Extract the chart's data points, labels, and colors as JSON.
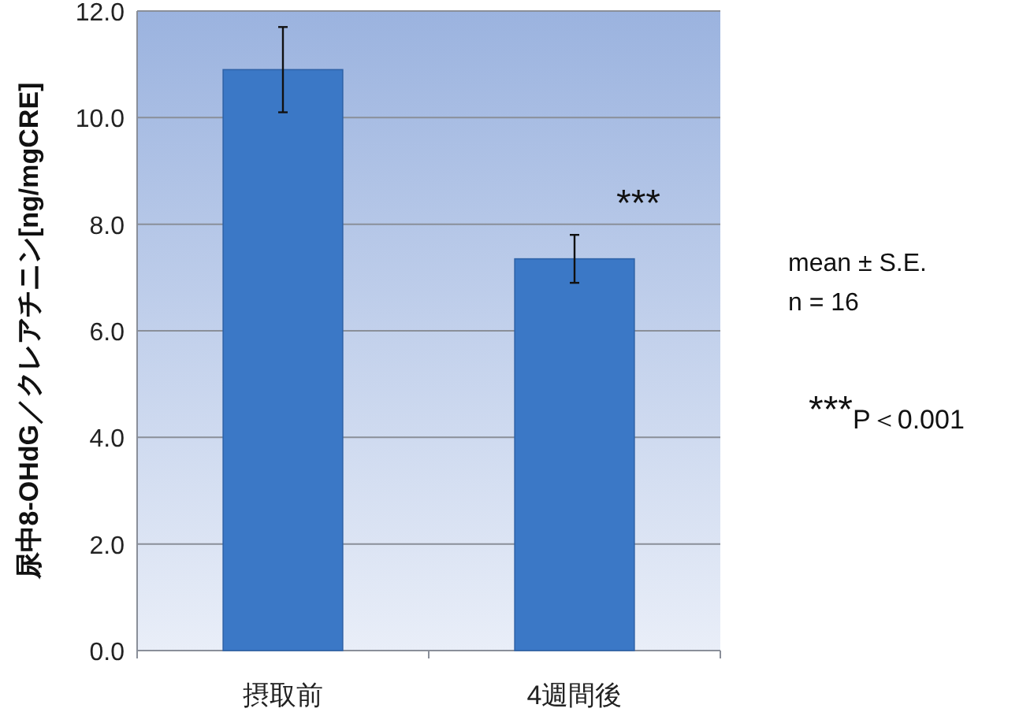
{
  "chart_data": {
    "type": "bar",
    "ylabel": "尿中8-OHdG／クレアチニン[ng/mgCRE]",
    "categories": [
      "摂取前",
      "4週間後"
    ],
    "values": [
      10.9,
      7.35
    ],
    "errors": [
      0.8,
      0.45
    ],
    "color": "#3b78c6",
    "ylim": [
      0,
      12
    ],
    "yticks": [
      {
        "value": 0,
        "label": "0.0"
      },
      {
        "value": 2,
        "label": "2.0"
      },
      {
        "value": 4,
        "label": "4.0"
      },
      {
        "value": 6,
        "label": "6.0"
      },
      {
        "value": 8,
        "label": "8.0"
      },
      {
        "value": 10,
        "label": "10.0"
      },
      {
        "value": 12,
        "label": "12.0"
      }
    ],
    "grid": "y",
    "annotations": [
      "***",
      "mean ± S.E.",
      "n = 16",
      "***$_{P＜0.001}$"
    ]
  }
}
